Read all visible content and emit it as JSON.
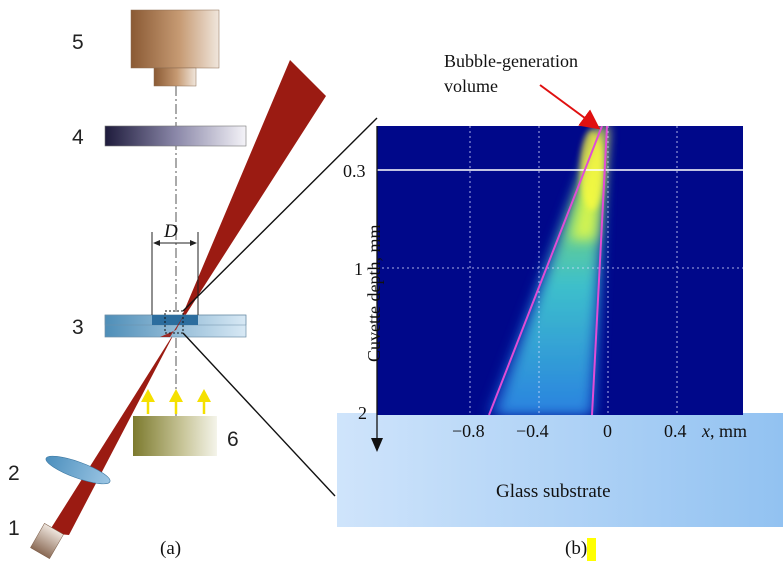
{
  "labels": {
    "n1": "1",
    "n2": "2",
    "n3": "3",
    "n4": "4",
    "n5": "5",
    "n6": "6",
    "D": "D",
    "caption_a": "(a)",
    "caption_b_open": "(b",
    "caption_b_close": ")",
    "bubble_line1": "Bubble-generation",
    "bubble_line2": "volume",
    "glass": "Glass substrate",
    "y_axis": "Cuvette depth, mm",
    "x_axis_var": "x",
    "x_axis_unit": ", mm"
  },
  "chart_data": {
    "type": "heatmap",
    "ylabel": "Cuvette depth, mm",
    "xlabel": "x, mm",
    "x_ticks": [
      "−0.8",
      "−0.4",
      "0",
      "0.4"
    ],
    "y_ticks": [
      "0.3",
      "1",
      "2"
    ],
    "annotation": "Bubble-generation volume",
    "region_label": "Glass substrate"
  },
  "colors": {
    "beam": "#9b1b12",
    "heatmap_bg": "#00088a",
    "cone_edge": "#e04cd6",
    "arrow": "#e01010",
    "highlight": "#ffff00",
    "glass": "#9cc7f2"
  }
}
